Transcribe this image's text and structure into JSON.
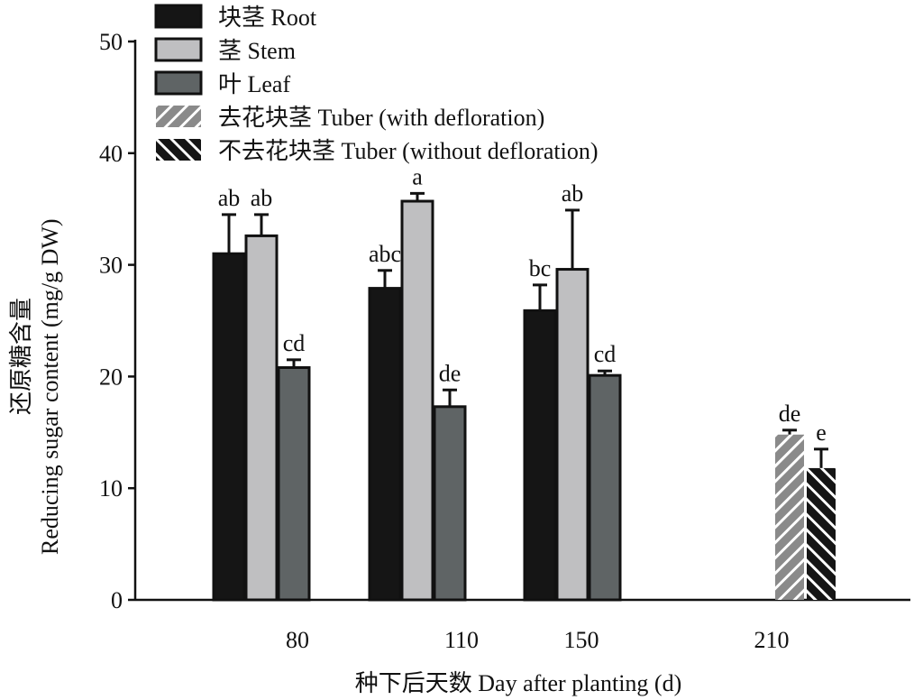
{
  "chart_data": {
    "type": "bar",
    "xlabel": "种下后天数 Day after planting (d)",
    "ylabel_line1": "还原糖含量",
    "ylabel_line2": "Reducing sugar content (mg/g DW)",
    "ylim": [
      0,
      50
    ],
    "yticks": [
      "0",
      "10",
      "20",
      "30",
      "40",
      "50"
    ],
    "categories": [
      "80",
      "110",
      "150",
      "210"
    ],
    "legend_position": "top-left",
    "series": [
      {
        "name": "块茎 Root",
        "color": "#151515",
        "pattern": "solid",
        "values": [
          31.0,
          27.9,
          25.9,
          null
        ],
        "errors": [
          3.5,
          1.6,
          2.3,
          null
        ],
        "labels": [
          "ab",
          "abc",
          "bc",
          null
        ]
      },
      {
        "name": "茎 Stem",
        "color": "#bfbfc1",
        "pattern": "solid",
        "values": [
          32.6,
          35.7,
          29.6,
          null
        ],
        "errors": [
          1.9,
          0.7,
          5.3,
          null
        ],
        "labels": [
          "ab",
          "a",
          "ab",
          null
        ]
      },
      {
        "name": "叶 Leaf",
        "color": "#5f6465",
        "pattern": "solid",
        "values": [
          20.8,
          17.3,
          20.1,
          null
        ],
        "errors": [
          0.7,
          1.5,
          0.4,
          null
        ],
        "labels": [
          "cd",
          "de",
          "cd",
          null
        ]
      },
      {
        "name": "去花块茎 Tuber (with defloration)",
        "color": "#8a8a8a",
        "pattern": "hatch-forward",
        "values": [
          null,
          null,
          null,
          14.8
        ],
        "errors": [
          null,
          null,
          null,
          0.4
        ],
        "labels": [
          null,
          null,
          null,
          "de"
        ]
      },
      {
        "name": "不去花块茎 Tuber (without defloration)",
        "color": "#151515",
        "pattern": "hatch-back",
        "values": [
          null,
          null,
          null,
          11.8
        ],
        "errors": [
          null,
          null,
          null,
          1.7
        ],
        "labels": [
          null,
          null,
          null,
          "e"
        ]
      }
    ]
  }
}
